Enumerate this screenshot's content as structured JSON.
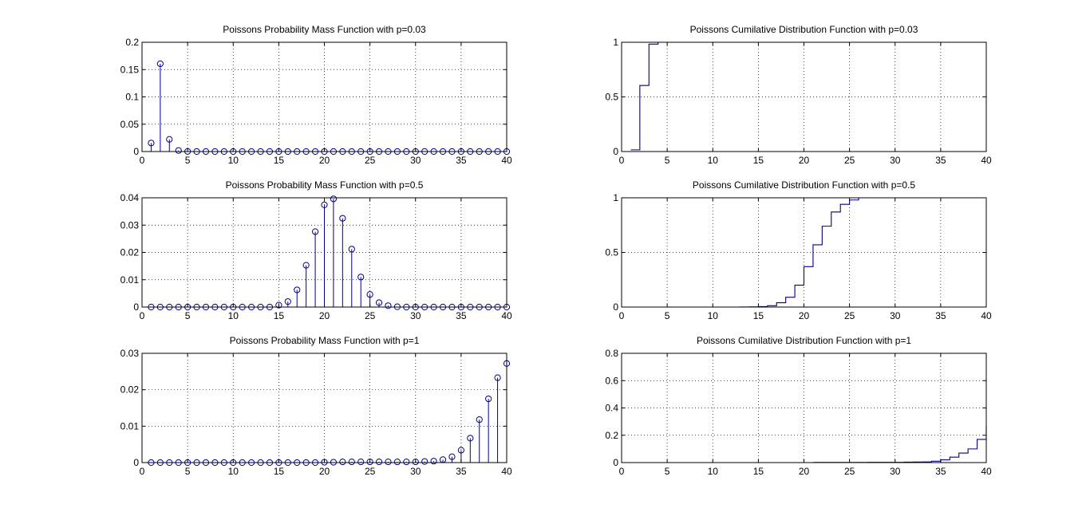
{
  "colors": {
    "line": "#00008B",
    "axes": "#000000",
    "grid": "#000000",
    "background": "#ffffff"
  },
  "chart_data": [
    {
      "type": "stem",
      "title": "Poissons Probability Mass Function with p=0.03",
      "xlim": [
        0,
        40
      ],
      "ylim": [
        0,
        0.2
      ],
      "xticks": [
        "0",
        "5",
        "10",
        "15",
        "20",
        "25",
        "30",
        "35",
        "40"
      ],
      "yticks": [
        "0",
        "0.05",
        "0.1",
        "0.15",
        "0.2"
      ],
      "grid": true,
      "x": [
        1,
        2,
        3,
        4,
        5,
        6,
        7,
        8,
        9,
        10,
        11,
        12,
        13,
        14,
        15,
        16,
        17,
        18,
        19,
        20,
        21,
        22,
        23,
        24,
        25,
        26,
        27,
        28,
        29,
        30,
        31,
        32,
        33,
        34,
        35,
        36,
        37,
        38,
        39,
        40
      ],
      "values": [
        0.0156,
        0.1607,
        0.0223,
        0.0019,
        0.0002,
        0,
        0,
        0,
        0,
        0,
        0,
        0,
        0,
        0,
        0,
        0,
        0,
        0,
        0,
        0,
        0,
        0,
        0,
        0,
        0,
        0,
        0,
        0,
        0,
        0,
        0,
        0,
        0,
        0,
        0,
        0,
        0,
        0,
        0,
        0
      ]
    },
    {
      "type": "stairs",
      "title": "Poissons Cumilative Distribution Function with p=0.03",
      "xlim": [
        0,
        40
      ],
      "ylim": [
        0,
        1
      ],
      "xticks": [
        "0",
        "5",
        "10",
        "15",
        "20",
        "25",
        "30",
        "35",
        "40"
      ],
      "yticks": [
        "0",
        "0.5",
        "1"
      ],
      "grid": true,
      "x": [
        1,
        2,
        3,
        4
      ],
      "values": [
        0.0156,
        0.6045,
        0.9831,
        1.0
      ]
    },
    {
      "type": "stem",
      "title": "Poissons Probability Mass Function with p=0.5",
      "xlim": [
        0,
        40
      ],
      "ylim": [
        0,
        0.04
      ],
      "xticks": [
        "0",
        "5",
        "10",
        "15",
        "20",
        "25",
        "30",
        "35",
        "40"
      ],
      "yticks": [
        "0",
        "0.01",
        "0.02",
        "0.03",
        "0.04"
      ],
      "grid": true,
      "x": [
        1,
        2,
        3,
        4,
        5,
        6,
        7,
        8,
        9,
        10,
        11,
        12,
        13,
        14,
        15,
        16,
        17,
        18,
        19,
        20,
        21,
        22,
        23,
        24,
        25,
        26,
        27,
        28,
        29,
        30,
        31,
        32,
        33,
        34,
        35,
        36,
        37,
        38,
        39,
        40
      ],
      "values": [
        0,
        0,
        0,
        0,
        0,
        0,
        0,
        0,
        0,
        0,
        0,
        0,
        0,
        0,
        0.0007,
        0.002,
        0.0063,
        0.0153,
        0.0276,
        0.0374,
        0.0396,
        0.0325,
        0.0212,
        0.011,
        0.0046,
        0.0016,
        0.0005,
        0.0001,
        0,
        0,
        0,
        0,
        0,
        0,
        0,
        0,
        0,
        0,
        0,
        0
      ]
    },
    {
      "type": "stairs",
      "title": "Poissons Cumilative Distribution Function with p=0.5",
      "xlim": [
        0,
        40
      ],
      "ylim": [
        0,
        1
      ],
      "xticks": [
        "0",
        "5",
        "10",
        "15",
        "20",
        "25",
        "30",
        "35",
        "40"
      ],
      "yticks": [
        "0",
        "0.5",
        "1"
      ],
      "grid": true,
      "x": [
        7,
        8,
        9,
        10,
        11,
        12,
        13,
        14,
        15,
        16,
        17,
        18,
        19,
        20,
        21,
        22,
        23,
        24,
        25,
        26
      ],
      "values": [
        0,
        0,
        0,
        0,
        0,
        0,
        0.0005,
        0.0015,
        0.004,
        0.012,
        0.04,
        0.09,
        0.2,
        0.37,
        0.57,
        0.74,
        0.87,
        0.94,
        0.98,
        1.0
      ]
    },
    {
      "type": "stem",
      "title": "Poissons Probability Mass Function with p=1",
      "xlim": [
        0,
        40
      ],
      "ylim": [
        0,
        0.03
      ],
      "xticks": [
        "0",
        "5",
        "10",
        "15",
        "20",
        "25",
        "30",
        "35",
        "40"
      ],
      "yticks": [
        "0",
        "0.01",
        "0.02",
        "0.03"
      ],
      "grid": true,
      "x": [
        1,
        2,
        3,
        4,
        5,
        6,
        7,
        8,
        9,
        10,
        11,
        12,
        13,
        14,
        15,
        16,
        17,
        18,
        19,
        20,
        21,
        22,
        23,
        24,
        25,
        26,
        27,
        28,
        29,
        30,
        31,
        32,
        33,
        34,
        35,
        36,
        37,
        38,
        39,
        40
      ],
      "values": [
        0,
        0,
        0,
        0,
        0,
        0,
        0,
        0,
        0,
        0,
        0,
        0,
        0,
        0,
        0,
        0,
        0,
        0,
        0,
        0.0001,
        0.0001,
        0.0002,
        0.0002,
        0.0002,
        0.0002,
        0.0002,
        0.0002,
        0.0002,
        0.0002,
        0.0002,
        0.0003,
        0.0004,
        0.0008,
        0.0016,
        0.0034,
        0.0067,
        0.0118,
        0.0175,
        0.0233,
        0.0272
      ]
    },
    {
      "type": "stairs",
      "title": "Poissons Cumilative Distribution Function with p=1",
      "xlim": [
        0,
        40
      ],
      "ylim": [
        0,
        0.8
      ],
      "xticks": [
        "0",
        "5",
        "10",
        "15",
        "20",
        "25",
        "30",
        "35",
        "40"
      ],
      "yticks": [
        "0",
        "0.2",
        "0.4",
        "0.6",
        "0.8"
      ],
      "grid": true,
      "x": [
        21,
        22,
        23,
        24,
        25,
        26,
        27,
        28,
        29,
        30,
        31,
        32,
        33,
        34,
        35,
        36,
        37,
        38,
        39,
        40
      ],
      "values": [
        0.001,
        0.001,
        0.001,
        0.001,
        0.001,
        0.001,
        0.002,
        0.002,
        0.002,
        0.002,
        0.003,
        0.004,
        0.005,
        0.01,
        0.02,
        0.04,
        0.07,
        0.1,
        0.17,
        0.27
      ]
    }
  ]
}
